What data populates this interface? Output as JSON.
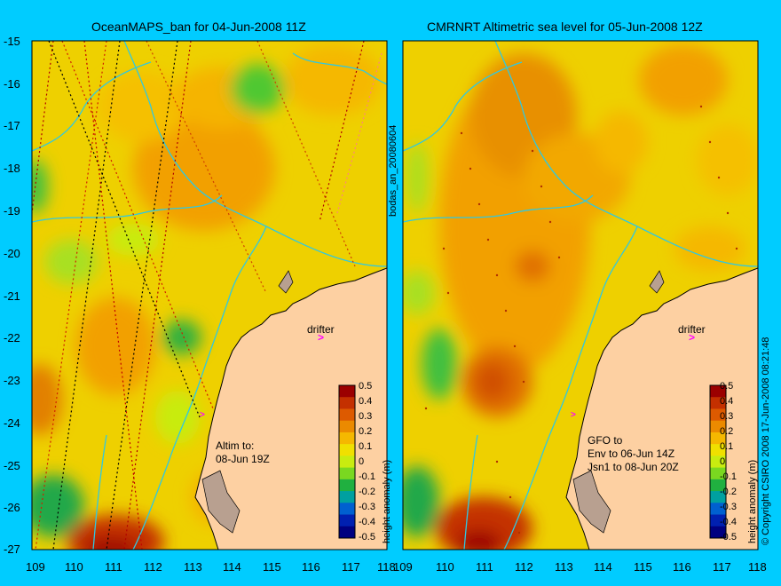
{
  "panels": [
    {
      "title": "OceanMAPS_ban for 04-Jun-2008 11Z",
      "drifter_label": "drifter",
      "note_lines": [
        "Altim to:",
        "08-Jun 19Z"
      ]
    },
    {
      "title": "CMRNRT Altimetric sea level  for 05-Jun-2008 12Z",
      "drifter_label": "drifter",
      "note_lines": [
        "GFO to",
        "Env to 06-Jun 14Z",
        "Jsn1 to 08-Jun 20Z"
      ]
    }
  ],
  "y_ticks": [
    "-15",
    "-16",
    "-17",
    "-18",
    "-19",
    "-20",
    "-21",
    "-22",
    "-23",
    "-24",
    "-25",
    "-26",
    "-27"
  ],
  "x_ticks": [
    "109",
    "110",
    "111",
    "112",
    "113",
    "114",
    "115",
    "116",
    "117",
    "118"
  ],
  "colorbar": {
    "title": "height anomaly (m)",
    "labels": [
      "0.5",
      "0.4",
      "0.3",
      "0.2",
      "0.1",
      "0",
      "-0.1",
      "-0.2",
      "-0.3",
      "-0.4",
      "-0.5"
    ],
    "colors": [
      "#9b0000",
      "#c43000",
      "#dd5a00",
      "#eb8a00",
      "#f5b800",
      "#f0e000",
      "#c8ec10",
      "#7ad820",
      "#20b040",
      "#00a0a0",
      "#0060d0",
      "#0020b0",
      "#000080"
    ]
  },
  "side_labels": {
    "file_tag": "bodas_an_20080604",
    "copyright": "© Copyright CSIRO 2008   17-Jun-2008 08:21:48"
  },
  "map_colors": {
    "background": "#00ccff",
    "base_anomaly": "#eed000",
    "land": "#fdd0a2",
    "shelf_contour": "#30c8e0",
    "drifter": "#ff00ff"
  }
}
